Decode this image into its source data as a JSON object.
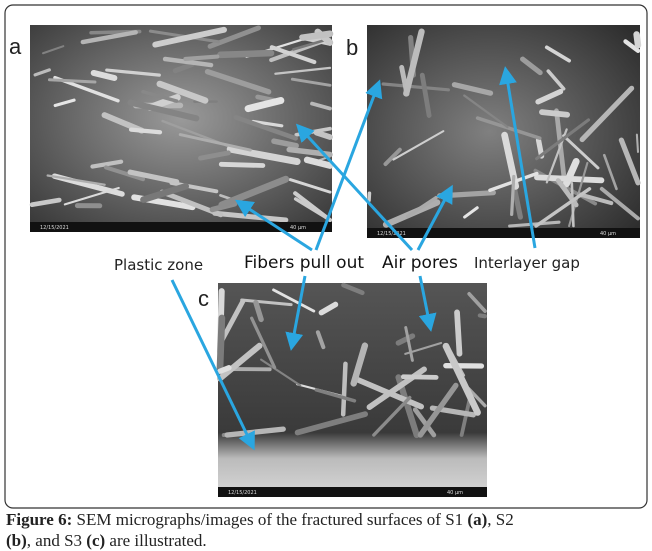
{
  "panels": [
    {
      "label": "a",
      "scale": "40 µm",
      "date": "12/15/2021"
    },
    {
      "label": "b",
      "scale": "40 µm",
      "date": "12/15/2021"
    },
    {
      "label": "c",
      "scale": "40 µm",
      "date": "12/15/2021"
    }
  ],
  "annotations": [
    "Plastic zone",
    "Fibers pull out",
    "Air pores",
    "Interlayer gap"
  ],
  "caption": {
    "figure": "Figure 6:",
    "text1": " SEM micrographs/images of the fractured surfaces of S1 ",
    "a": "(a)",
    "text2": ", S2",
    "b": "(b)",
    "text3": ", and S3 ",
    "c": "(c)",
    "text4": " are illustrated."
  }
}
